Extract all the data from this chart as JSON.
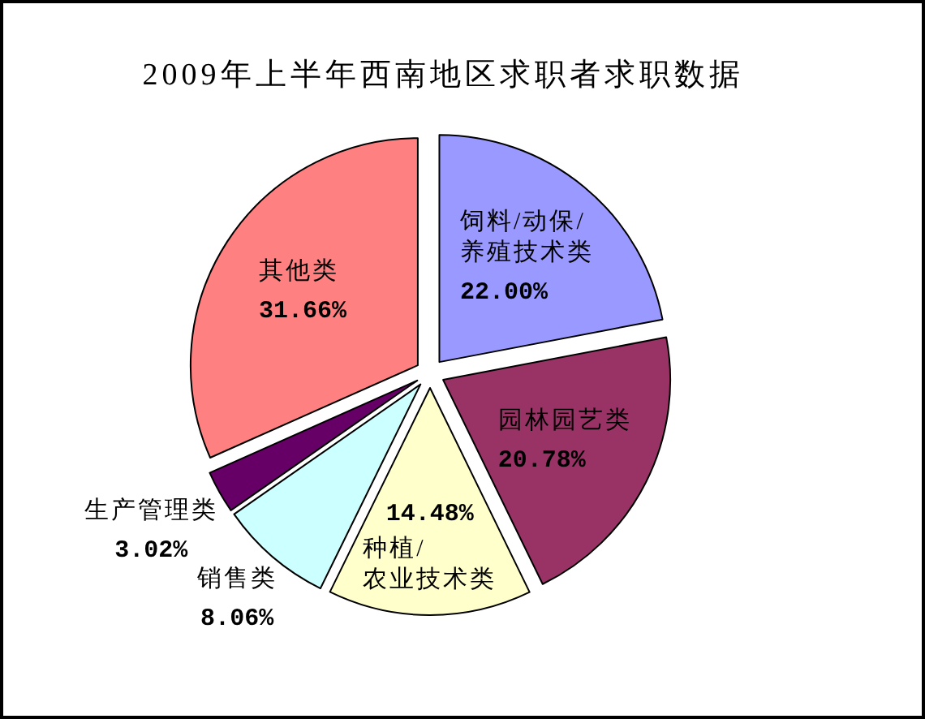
{
  "chart_data": {
    "type": "pie",
    "title": "2009年上半年西南地区求职者求职数据",
    "categories": [
      "饲料/动保/养殖技术类",
      "园林园艺类",
      "种植/农业技术类",
      "销售类",
      "生产管理类",
      "其他类"
    ],
    "values": [
      22.0,
      20.78,
      14.48,
      8.06,
      3.02,
      31.66
    ],
    "colors": [
      "#9999ff",
      "#993366",
      "#ffffcc",
      "#ccffff",
      "#660066",
      "#ff8080"
    ],
    "value_labels": [
      "22.00%",
      "20.78%",
      "14.48%",
      "8.06%",
      "3.02%",
      "31.66%"
    ]
  }
}
